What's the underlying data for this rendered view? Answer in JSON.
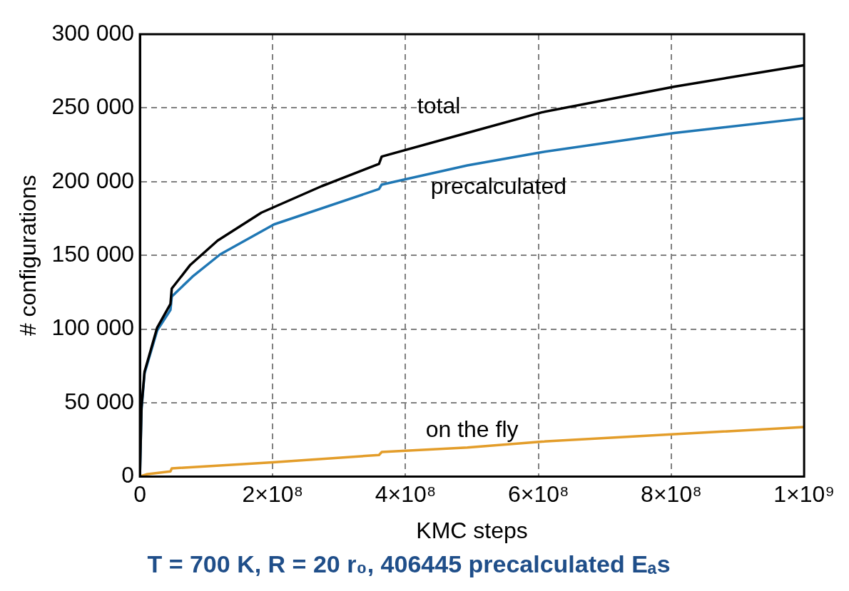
{
  "chart_data": {
    "type": "line",
    "title": "T = 700 K, R = 20 r₀, 406445 precalculated Eₐs",
    "xlabel": "KMC steps",
    "ylabel": "# configurations",
    "xlim": [
      0,
      1000000000
    ],
    "ylim": [
      0,
      300000
    ],
    "xticks": [
      0,
      {
        "value": 200000000,
        "label": "2×10⁸"
      },
      {
        "value": 400000000,
        "label": "4×10⁸"
      },
      {
        "value": 600000000,
        "label": "6×10⁸"
      },
      {
        "value": 800000000,
        "label": "8×10⁸"
      },
      {
        "value": 1000000000,
        "label": "1×10⁹"
      }
    ],
    "yticks": [
      0,
      {
        "value": 50000,
        "label": "50 000"
      },
      {
        "value": 100000,
        "label": "100 000"
      },
      {
        "value": 150000,
        "label": "150 000"
      },
      {
        "value": 200000,
        "label": "200 000"
      },
      {
        "value": 250000,
        "label": "250 000"
      },
      {
        "value": 300000,
        "label": "300 000"
      }
    ],
    "grid": true,
    "marker": "none",
    "line_style": "solid",
    "series": [
      {
        "name": "total",
        "color": "#000000",
        "x": [
          0,
          2400000,
          7000000,
          26000000,
          46000000,
          48000000,
          76000000,
          117000000,
          183000000,
          274000000,
          360000000,
          364000000,
          476000000,
          605000000,
          805000000,
          1000000000
        ],
        "values": [
          0,
          47000,
          71000,
          101000,
          117000,
          127500,
          143600,
          160000,
          179000,
          197000,
          212000,
          217000,
          231000,
          247000,
          264500,
          279000
        ]
      },
      {
        "name": "precalculated",
        "color": "#1f77b4",
        "x": [
          0,
          2400000,
          7000000,
          26000000,
          46000000,
          48000000,
          79000000,
          121000000,
          202000000,
          360000000,
          364000000,
          493000000,
          605000000,
          805000000,
          1000000000
        ],
        "values": [
          0,
          45000,
          70000,
          99000,
          113000,
          122000,
          135500,
          150700,
          171000,
          195000,
          198000,
          211000,
          220000,
          233000,
          243000
        ]
      },
      {
        "name": "on the fly",
        "color": "#e39d2a",
        "x": [
          0,
          10000000,
          46000000,
          48000000,
          200000000,
          360000000,
          364000000,
          493000000,
          605000000,
          805000000,
          1000000000
        ],
        "values": [
          0,
          1500,
          3500,
          5500,
          9600,
          14600,
          16600,
          19700,
          23700,
          28700,
          33500
        ]
      }
    ]
  }
}
